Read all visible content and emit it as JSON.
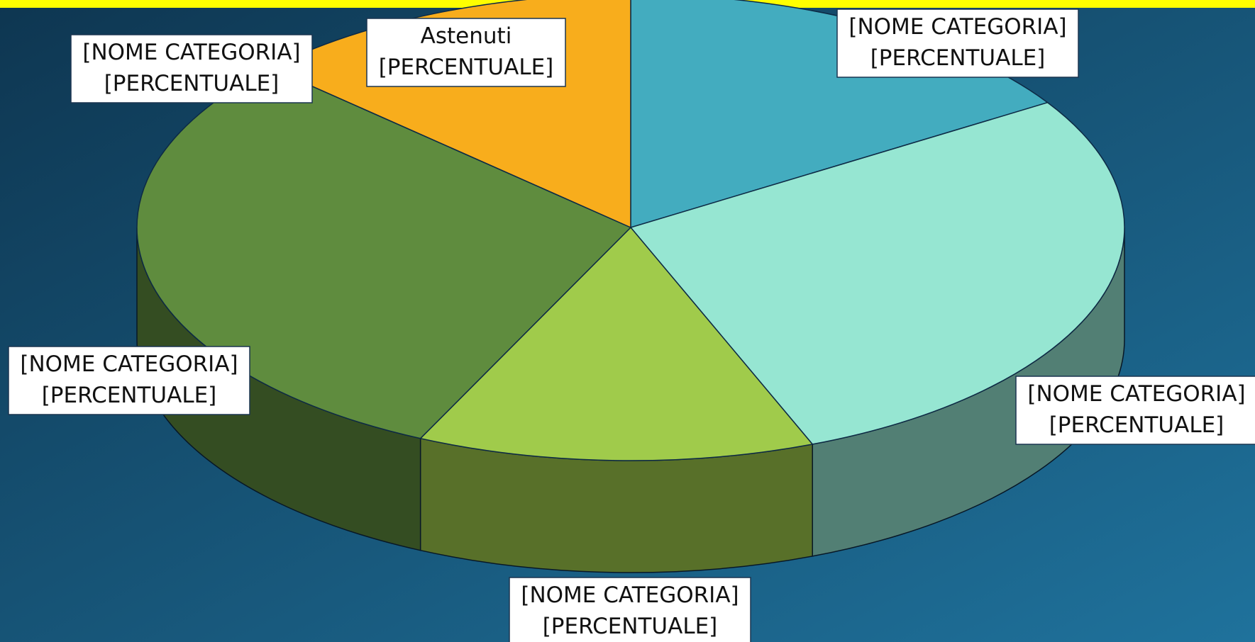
{
  "chart_data": {
    "type": "pie3d",
    "categories": [
      "[NOME CATEGORIA]",
      "[NOME CATEGORIA]",
      "[NOME CATEGORIA]",
      "[NOME CATEGORIA]",
      "[NOME CATEGORIA]",
      "Astenuti"
    ],
    "values": [
      16,
      28,
      13,
      30,
      0,
      13
    ],
    "value_labels": [
      "[PERCENTUALE]",
      "[PERCENTUALE]",
      "[PERCENTUALE]",
      "[PERCENTUALE]",
      "[PERCENTUALE]",
      "[PERCENTUALE]"
    ],
    "colors": [
      "#43acbf",
      "#96e6d2",
      "#a0cb4b",
      "#5f8c3e",
      "#4f7a33",
      "#f8ad1c"
    ]
  }
}
